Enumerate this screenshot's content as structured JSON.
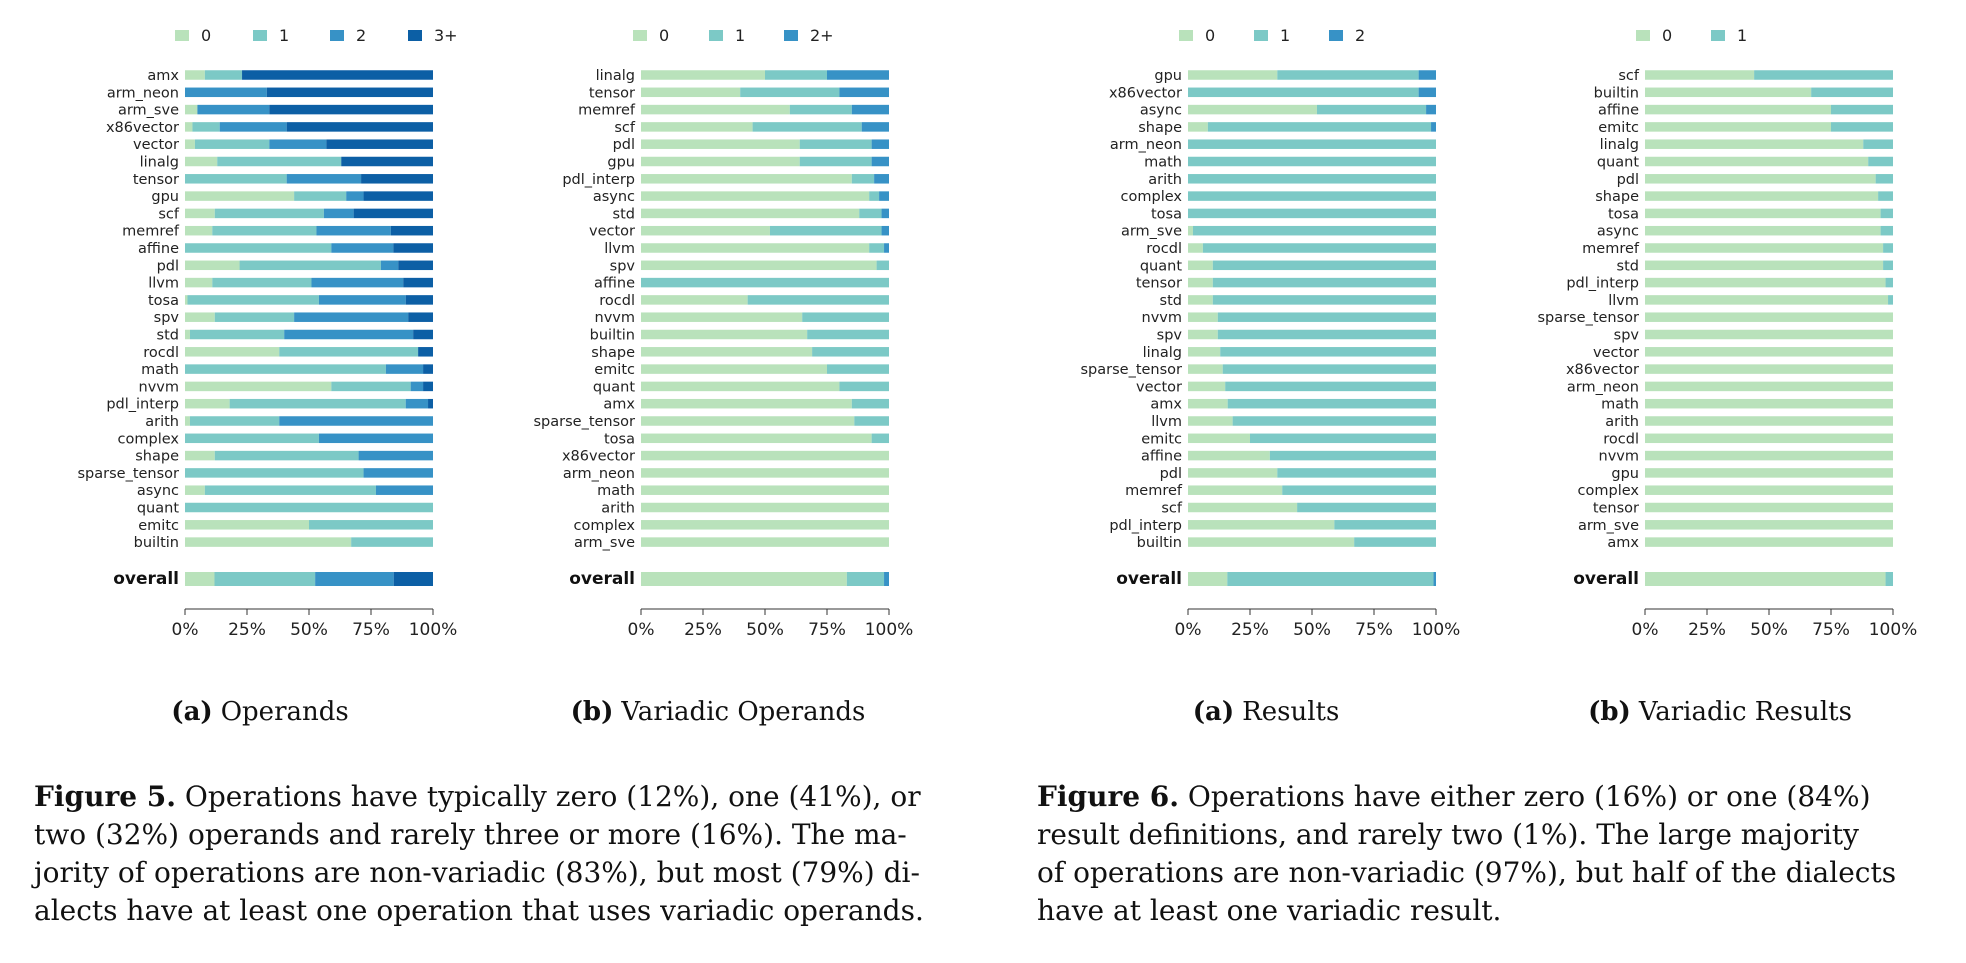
{
  "colors": [
    "#b9e2bb",
    "#7cc9c6",
    "#3792c6",
    "#0c5fa5"
  ],
  "chart_data": [
    {
      "type": "bar",
      "orientation": "horizontal",
      "stacked": true,
      "subcaption_letter": "(a)",
      "subcaption_text": "Operands",
      "legend": [
        "0",
        "1",
        "2",
        "3+"
      ],
      "xticks": [
        "0%",
        "25%",
        "50%",
        "75%",
        "100%"
      ],
      "overall_label": "overall",
      "categories": [
        "amx",
        "arm_neon",
        "arm_sve",
        "x86vector",
        "vector",
        "linalg",
        "tensor",
        "gpu",
        "scf",
        "memref",
        "affine",
        "pdl",
        "llvm",
        "tosa",
        "spv",
        "std",
        "rocdl",
        "math",
        "nvvm",
        "pdl_interp",
        "arith",
        "complex",
        "shape",
        "sparse_tensor",
        "async",
        "quant",
        "emitc",
        "builtin"
      ],
      "values": [
        [
          8,
          15,
          0,
          77
        ],
        [
          0,
          0,
          33,
          67
        ],
        [
          5,
          0,
          29,
          66
        ],
        [
          3,
          11,
          27,
          59
        ],
        [
          4,
          30,
          23,
          43
        ],
        [
          13,
          50,
          0,
          37
        ],
        [
          0,
          41,
          30,
          29
        ],
        [
          44,
          21,
          7,
          28
        ],
        [
          12,
          44,
          12,
          32
        ],
        [
          11,
          42,
          30,
          17
        ],
        [
          0,
          59,
          25,
          16
        ],
        [
          22,
          57,
          7,
          14
        ],
        [
          11,
          40,
          37,
          12
        ],
        [
          1,
          53,
          35,
          11
        ],
        [
          12,
          32,
          46,
          10
        ],
        [
          2,
          38,
          52,
          8
        ],
        [
          38,
          56,
          0,
          6
        ],
        [
          0,
          81,
          15,
          4
        ],
        [
          59,
          32,
          5,
          4
        ],
        [
          18,
          71,
          9,
          2
        ],
        [
          2,
          36,
          62,
          0
        ],
        [
          0,
          54,
          46,
          0
        ],
        [
          12,
          58,
          30,
          0
        ],
        [
          0,
          72,
          28,
          0
        ],
        [
          8,
          69,
          23,
          0
        ],
        [
          0,
          100,
          0,
          0
        ],
        [
          50,
          50,
          0,
          0
        ],
        [
          67,
          33,
          0,
          0
        ]
      ],
      "overall": [
        12,
        41,
        32,
        16
      ]
    },
    {
      "type": "bar",
      "orientation": "horizontal",
      "stacked": true,
      "subcaption_letter": "(b)",
      "subcaption_text": "Variadic Operands",
      "legend": [
        "0",
        "1",
        "2+"
      ],
      "xticks": [
        "0%",
        "25%",
        "50%",
        "75%",
        "100%"
      ],
      "overall_label": "overall",
      "categories": [
        "linalg",
        "tensor",
        "memref",
        "scf",
        "pdl",
        "gpu",
        "pdl_interp",
        "async",
        "std",
        "vector",
        "llvm",
        "spv",
        "affine",
        "rocdl",
        "nvvm",
        "builtin",
        "shape",
        "emitc",
        "quant",
        "amx",
        "sparse_tensor",
        "tosa",
        "x86vector",
        "arm_neon",
        "math",
        "arith",
        "complex",
        "arm_sve"
      ],
      "values": [
        [
          50,
          25,
          25
        ],
        [
          40,
          40,
          20
        ],
        [
          60,
          25,
          15
        ],
        [
          45,
          44,
          11
        ],
        [
          64,
          29,
          7
        ],
        [
          64,
          29,
          7
        ],
        [
          85,
          9,
          6
        ],
        [
          92,
          4,
          4
        ],
        [
          88,
          9,
          3
        ],
        [
          52,
          45,
          3
        ],
        [
          92,
          6,
          2
        ],
        [
          95,
          5,
          0
        ],
        [
          0,
          100,
          0
        ],
        [
          43,
          57,
          0
        ],
        [
          65,
          35,
          0
        ],
        [
          67,
          33,
          0
        ],
        [
          69,
          31,
          0
        ],
        [
          75,
          25,
          0
        ],
        [
          80,
          20,
          0
        ],
        [
          85,
          15,
          0
        ],
        [
          86,
          14,
          0
        ],
        [
          93,
          7,
          0
        ],
        [
          100,
          0,
          0
        ],
        [
          100,
          0,
          0
        ],
        [
          100,
          0,
          0
        ],
        [
          100,
          0,
          0
        ],
        [
          100,
          0,
          0
        ],
        [
          100,
          0,
          0
        ]
      ],
      "overall": [
        83,
        15,
        2
      ]
    },
    {
      "type": "bar",
      "orientation": "horizontal",
      "stacked": true,
      "subcaption_letter": "(a)",
      "subcaption_text": "Results",
      "legend": [
        "0",
        "1",
        "2"
      ],
      "xticks": [
        "0%",
        "25%",
        "50%",
        "75%",
        "100%"
      ],
      "overall_label": "overall",
      "categories": [
        "gpu",
        "x86vector",
        "async",
        "shape",
        "arm_neon",
        "math",
        "arith",
        "complex",
        "tosa",
        "arm_sve",
        "rocdl",
        "quant",
        "tensor",
        "std",
        "nvvm",
        "spv",
        "linalg",
        "sparse_tensor",
        "vector",
        "amx",
        "llvm",
        "emitc",
        "affine",
        "pdl",
        "memref",
        "scf",
        "pdl_interp",
        "builtin"
      ],
      "values": [
        [
          36,
          57,
          7
        ],
        [
          0,
          93,
          7
        ],
        [
          52,
          44,
          4
        ],
        [
          8,
          90,
          2
        ],
        [
          0,
          100,
          0
        ],
        [
          0,
          100,
          0
        ],
        [
          0,
          100,
          0
        ],
        [
          0,
          100,
          0
        ],
        [
          0,
          100,
          0
        ],
        [
          2,
          98,
          0
        ],
        [
          6,
          94,
          0
        ],
        [
          10,
          90,
          0
        ],
        [
          10,
          90,
          0
        ],
        [
          10,
          90,
          0
        ],
        [
          12,
          88,
          0
        ],
        [
          12,
          88,
          0
        ],
        [
          13,
          87,
          0
        ],
        [
          14,
          86,
          0
        ],
        [
          15,
          85,
          0
        ],
        [
          16,
          84,
          0
        ],
        [
          18,
          82,
          0
        ],
        [
          25,
          75,
          0
        ],
        [
          33,
          67,
          0
        ],
        [
          36,
          64,
          0
        ],
        [
          38,
          62,
          0
        ],
        [
          44,
          56,
          0
        ],
        [
          59,
          41,
          0
        ],
        [
          67,
          33,
          0
        ]
      ],
      "overall": [
        16,
        84,
        1
      ]
    },
    {
      "type": "bar",
      "orientation": "horizontal",
      "stacked": true,
      "subcaption_letter": "(b)",
      "subcaption_text": "Variadic Results",
      "legend": [
        "0",
        "1"
      ],
      "xticks": [
        "0%",
        "25%",
        "50%",
        "75%",
        "100%"
      ],
      "overall_label": "overall",
      "categories": [
        "scf",
        "builtin",
        "affine",
        "emitc",
        "linalg",
        "quant",
        "pdl",
        "shape",
        "tosa",
        "async",
        "memref",
        "std",
        "pdl_interp",
        "llvm",
        "sparse_tensor",
        "spv",
        "vector",
        "x86vector",
        "arm_neon",
        "math",
        "arith",
        "rocdl",
        "nvvm",
        "gpu",
        "complex",
        "tensor",
        "arm_sve",
        "amx"
      ],
      "values": [
        [
          44,
          56
        ],
        [
          67,
          33
        ],
        [
          75,
          25
        ],
        [
          75,
          25
        ],
        [
          88,
          12
        ],
        [
          90,
          10
        ],
        [
          93,
          7
        ],
        [
          94,
          6
        ],
        [
          95,
          5
        ],
        [
          95,
          5
        ],
        [
          96,
          4
        ],
        [
          96,
          4
        ],
        [
          97,
          3
        ],
        [
          98,
          2
        ],
        [
          100,
          0
        ],
        [
          100,
          0
        ],
        [
          100,
          0
        ],
        [
          100,
          0
        ],
        [
          100,
          0
        ],
        [
          100,
          0
        ],
        [
          100,
          0
        ],
        [
          100,
          0
        ],
        [
          100,
          0
        ],
        [
          100,
          0
        ],
        [
          100,
          0
        ],
        [
          100,
          0
        ],
        [
          100,
          0
        ],
        [
          100,
          0
        ]
      ],
      "overall": [
        97,
        3
      ]
    }
  ],
  "captions": [
    {
      "label": "Figure 5.",
      "lines": [
        "Operations have typically zero (12%), one (41%), or",
        "two (32%) operands and rarely three or more (16%). The ma-",
        "jority of operations are non-variadic (83%), but most (79%) di-",
        "alects have at least one operation that uses variadic operands."
      ]
    },
    {
      "label": "Figure 6.",
      "lines": [
        "Operations have either zero (16%) or one (84%)",
        "result definitions, and rarely two (1%). The large majority",
        "of operations are non-variadic (97%), but half of the dialects",
        "have at least one variadic result."
      ]
    }
  ]
}
